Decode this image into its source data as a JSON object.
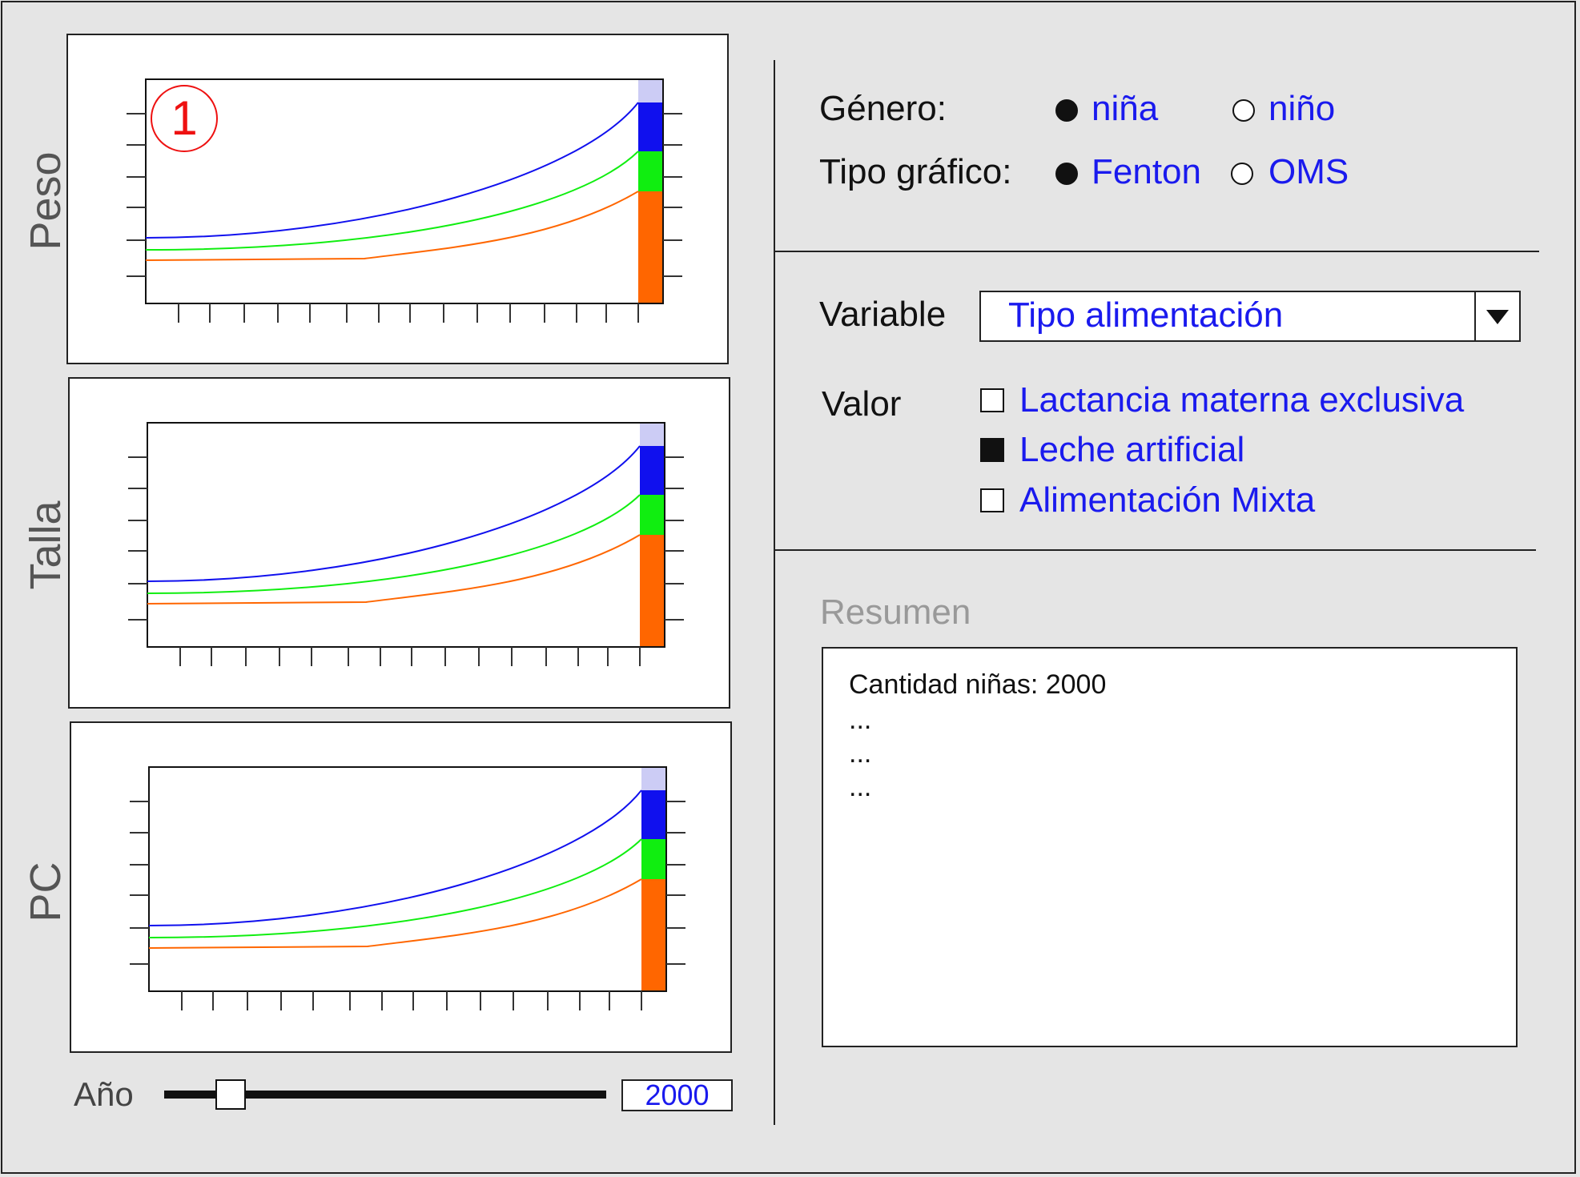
{
  "charts": [
    {
      "label": "Peso",
      "marker": "1"
    },
    {
      "label": "Talla",
      "marker": ""
    },
    {
      "label": "PC",
      "marker": ""
    }
  ],
  "colors": {
    "high": "#1010ee",
    "mid": "#10ee10",
    "low": "#ff6600",
    "top_band": "#ccccf5",
    "marker": "#ee1111"
  },
  "controls": {
    "genero_label": "Género:",
    "genero_options": [
      "niña",
      "niño"
    ],
    "genero_selected": 0,
    "tipo_label": "Tipo gráfico:",
    "tipo_options": [
      "Fenton",
      "OMS"
    ],
    "tipo_selected": 0,
    "variable_label": "Variable",
    "variable_value": "Tipo alimentación",
    "valor_label": "Valor",
    "valor_options": [
      {
        "label": "Lactancia materna exclusiva",
        "checked": false
      },
      {
        "label": "Leche artificial",
        "checked": true
      },
      {
        "label": "Alimentación Mixta",
        "checked": false
      }
    ]
  },
  "summary": {
    "title": "Resumen",
    "lines": [
      "Cantidad niñas: 2000",
      "...",
      "...",
      "..."
    ]
  },
  "year": {
    "label": "Año",
    "value": "2000",
    "position_fraction": 0.15
  }
}
